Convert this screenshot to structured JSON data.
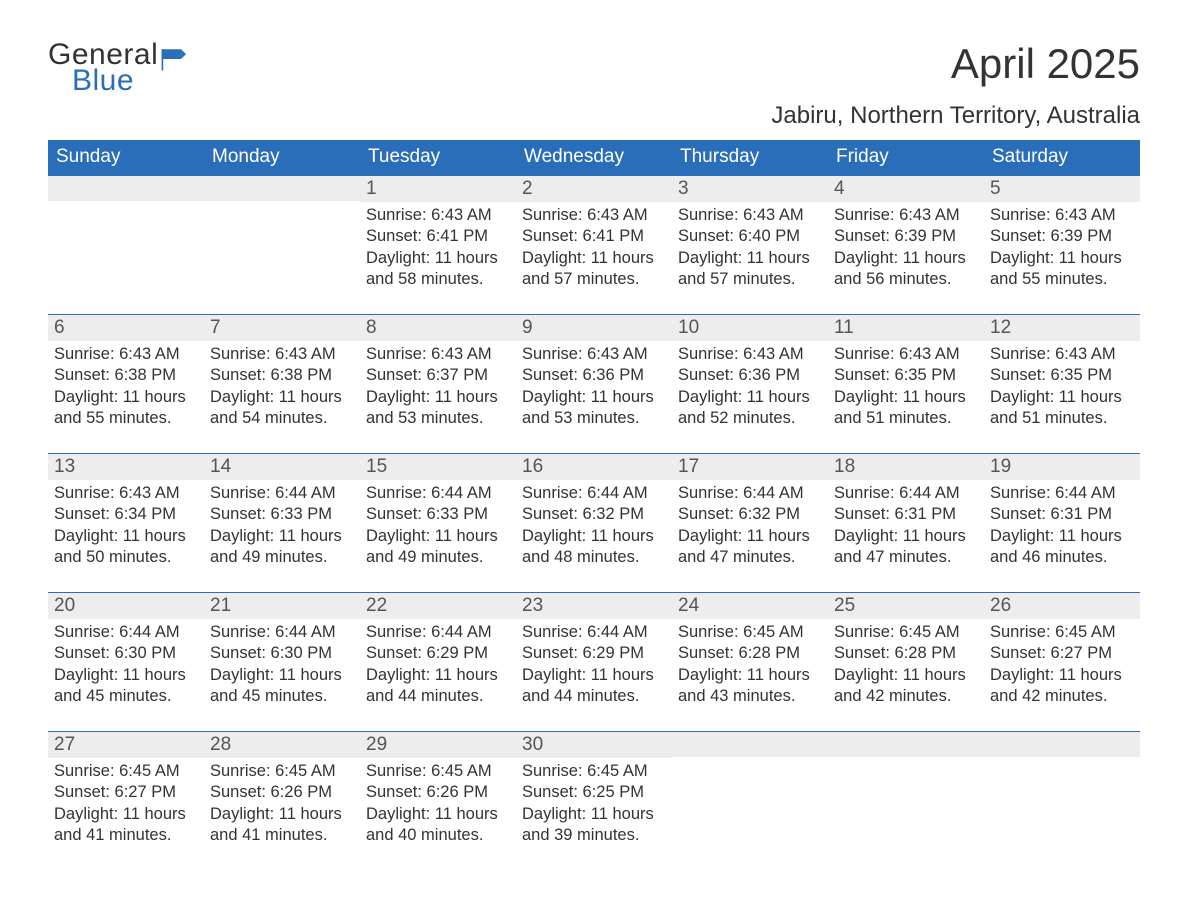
{
  "colors": {
    "brand_blue": "#2a6db8",
    "header_bg": "#2a6db8",
    "header_text": "#ffffff",
    "daynum_bg": "#ededed",
    "body_text": "#333333",
    "page_bg": "#ffffff",
    "week_border": "#2a6db8"
  },
  "typography": {
    "title_fontsize": 42,
    "subtitle_fontsize": 24,
    "header_fontsize": 19,
    "daynum_fontsize": 19,
    "body_fontsize": 16.5,
    "logo_fontsize": 30
  },
  "logo": {
    "line1": "General",
    "line2": "Blue"
  },
  "title": "April 2025",
  "subtitle": "Jabiru, Northern Territory, Australia",
  "day_headers": [
    "Sunday",
    "Monday",
    "Tuesday",
    "Wednesday",
    "Thursday",
    "Friday",
    "Saturday"
  ],
  "labels": {
    "sunrise": "Sunrise: ",
    "sunset": "Sunset: ",
    "daylight": "Daylight: "
  },
  "weeks": [
    [
      {
        "empty": true
      },
      {
        "empty": true
      },
      {
        "num": "1",
        "sunrise": "6:43 AM",
        "sunset": "6:41 PM",
        "daylight": "11 hours and 58 minutes."
      },
      {
        "num": "2",
        "sunrise": "6:43 AM",
        "sunset": "6:41 PM",
        "daylight": "11 hours and 57 minutes."
      },
      {
        "num": "3",
        "sunrise": "6:43 AM",
        "sunset": "6:40 PM",
        "daylight": "11 hours and 57 minutes."
      },
      {
        "num": "4",
        "sunrise": "6:43 AM",
        "sunset": "6:39 PM",
        "daylight": "11 hours and 56 minutes."
      },
      {
        "num": "5",
        "sunrise": "6:43 AM",
        "sunset": "6:39 PM",
        "daylight": "11 hours and 55 minutes."
      }
    ],
    [
      {
        "num": "6",
        "sunrise": "6:43 AM",
        "sunset": "6:38 PM",
        "daylight": "11 hours and 55 minutes."
      },
      {
        "num": "7",
        "sunrise": "6:43 AM",
        "sunset": "6:38 PM",
        "daylight": "11 hours and 54 minutes."
      },
      {
        "num": "8",
        "sunrise": "6:43 AM",
        "sunset": "6:37 PM",
        "daylight": "11 hours and 53 minutes."
      },
      {
        "num": "9",
        "sunrise": "6:43 AM",
        "sunset": "6:36 PM",
        "daylight": "11 hours and 53 minutes."
      },
      {
        "num": "10",
        "sunrise": "6:43 AM",
        "sunset": "6:36 PM",
        "daylight": "11 hours and 52 minutes."
      },
      {
        "num": "11",
        "sunrise": "6:43 AM",
        "sunset": "6:35 PM",
        "daylight": "11 hours and 51 minutes."
      },
      {
        "num": "12",
        "sunrise": "6:43 AM",
        "sunset": "6:35 PM",
        "daylight": "11 hours and 51 minutes."
      }
    ],
    [
      {
        "num": "13",
        "sunrise": "6:43 AM",
        "sunset": "6:34 PM",
        "daylight": "11 hours and 50 minutes."
      },
      {
        "num": "14",
        "sunrise": "6:44 AM",
        "sunset": "6:33 PM",
        "daylight": "11 hours and 49 minutes."
      },
      {
        "num": "15",
        "sunrise": "6:44 AM",
        "sunset": "6:33 PM",
        "daylight": "11 hours and 49 minutes."
      },
      {
        "num": "16",
        "sunrise": "6:44 AM",
        "sunset": "6:32 PM",
        "daylight": "11 hours and 48 minutes."
      },
      {
        "num": "17",
        "sunrise": "6:44 AM",
        "sunset": "6:32 PM",
        "daylight": "11 hours and 47 minutes."
      },
      {
        "num": "18",
        "sunrise": "6:44 AM",
        "sunset": "6:31 PM",
        "daylight": "11 hours and 47 minutes."
      },
      {
        "num": "19",
        "sunrise": "6:44 AM",
        "sunset": "6:31 PM",
        "daylight": "11 hours and 46 minutes."
      }
    ],
    [
      {
        "num": "20",
        "sunrise": "6:44 AM",
        "sunset": "6:30 PM",
        "daylight": "11 hours and 45 minutes."
      },
      {
        "num": "21",
        "sunrise": "6:44 AM",
        "sunset": "6:30 PM",
        "daylight": "11 hours and 45 minutes."
      },
      {
        "num": "22",
        "sunrise": "6:44 AM",
        "sunset": "6:29 PM",
        "daylight": "11 hours and 44 minutes."
      },
      {
        "num": "23",
        "sunrise": "6:44 AM",
        "sunset": "6:29 PM",
        "daylight": "11 hours and 44 minutes."
      },
      {
        "num": "24",
        "sunrise": "6:45 AM",
        "sunset": "6:28 PM",
        "daylight": "11 hours and 43 minutes."
      },
      {
        "num": "25",
        "sunrise": "6:45 AM",
        "sunset": "6:28 PM",
        "daylight": "11 hours and 42 minutes."
      },
      {
        "num": "26",
        "sunrise": "6:45 AM",
        "sunset": "6:27 PM",
        "daylight": "11 hours and 42 minutes."
      }
    ],
    [
      {
        "num": "27",
        "sunrise": "6:45 AM",
        "sunset": "6:27 PM",
        "daylight": "11 hours and 41 minutes."
      },
      {
        "num": "28",
        "sunrise": "6:45 AM",
        "sunset": "6:26 PM",
        "daylight": "11 hours and 41 minutes."
      },
      {
        "num": "29",
        "sunrise": "6:45 AM",
        "sunset": "6:26 PM",
        "daylight": "11 hours and 40 minutes."
      },
      {
        "num": "30",
        "sunrise": "6:45 AM",
        "sunset": "6:25 PM",
        "daylight": "11 hours and 39 minutes."
      },
      {
        "empty": true
      },
      {
        "empty": true
      },
      {
        "empty": true
      }
    ]
  ]
}
